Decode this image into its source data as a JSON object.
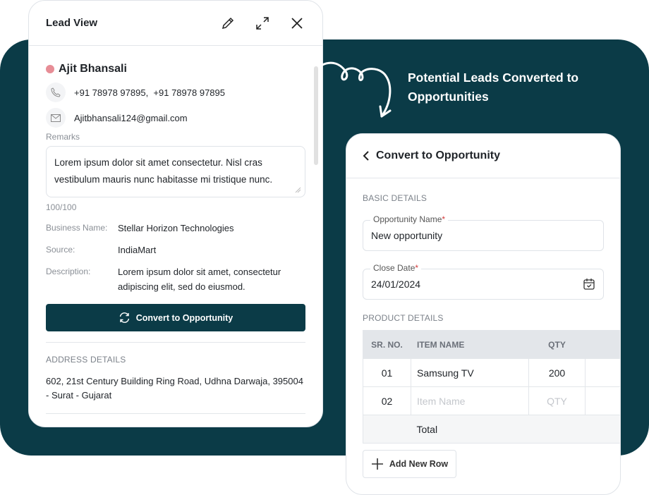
{
  "colors": {
    "brand": "#0b3b47",
    "status_dot": "#e78d96"
  },
  "lead_view": {
    "title": "Lead View",
    "icons": [
      "pencil-icon",
      "expand-icon",
      "close-icon"
    ],
    "name": "Ajit Bhansali",
    "phone": "+91 78978 97895,  +91 78978 97895",
    "email": "Ajitbhansali124@gmail.com",
    "remarks_label": "Remarks",
    "remarks": "Lorem ipsum dolor sit amet consectetur. Nisl cras vestibulum mauris nunc habitasse mi tristique nunc.",
    "char_count": "100/100",
    "business_label": "Business Name:",
    "business": "Stellar Horizon Technologies",
    "source_label": "Source:",
    "source": "IndiaMart",
    "description_label": "Description:",
    "description": "Lorem ipsum dolor sit amet, consectetur adipiscing elit, sed do eiusmod.",
    "convert_button": "Convert to Opportunity",
    "address_section": "ADDRESS DETAILS",
    "address": "602, 21st Century Building Ring Road, Udhna Darwaja, 395004 - Surat - Gujarat"
  },
  "caption": "Potential Leads Converted to Opportunities",
  "opportunity": {
    "title": "Convert to Opportunity",
    "basic_section": "BASIC DETAILS",
    "name_label": "Opportunity Name",
    "name_value": "New opportunity",
    "date_label": "Close Date",
    "date_value": "24/01/2024",
    "required": "*",
    "product_section": "PRODUCT DETAILS",
    "columns": [
      "SR. NO.",
      "ITEM NAME",
      "QTY",
      ""
    ],
    "rows": [
      {
        "sr": "01",
        "item": "Samsung TV",
        "qty": "200"
      },
      {
        "sr": "02",
        "item": "Item Name",
        "qty": "QTY"
      }
    ],
    "total_label": "Total",
    "add_row": "Add New Row"
  }
}
